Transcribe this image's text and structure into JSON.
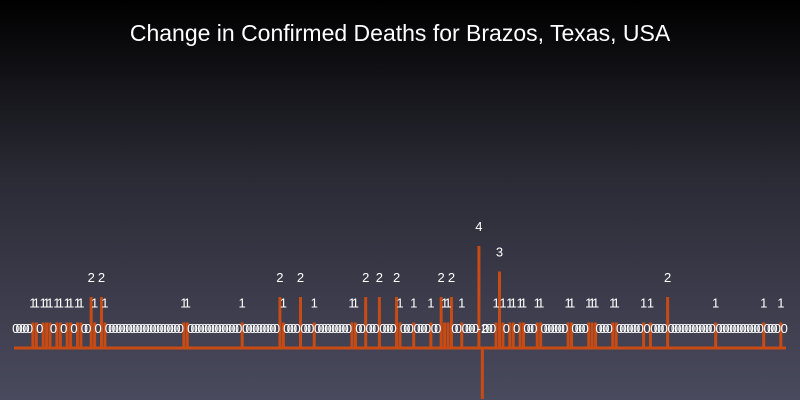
{
  "chart_data": {
    "type": "bar",
    "title": "Change in Confirmed Deaths for Brazos, Texas, USA",
    "xlabel": "",
    "ylabel": "",
    "bar_color": "#c84b14",
    "label_color": "#ffffff",
    "values": [
      0,
      0,
      0,
      0,
      0,
      1,
      1,
      0,
      1,
      1,
      1,
      0,
      1,
      1,
      0,
      1,
      1,
      0,
      1,
      1,
      0,
      0,
      2,
      1,
      0,
      2,
      1,
      0,
      0,
      0,
      0,
      0,
      0,
      0,
      0,
      0,
      0,
      0,
      0,
      0,
      0,
      0,
      0,
      0,
      0,
      0,
      0,
      0,
      0,
      1,
      1,
      0,
      0,
      0,
      0,
      0,
      0,
      0,
      0,
      0,
      0,
      0,
      0,
      0,
      0,
      0,
      1,
      0,
      0,
      0,
      0,
      0,
      0,
      0,
      0,
      0,
      0,
      2,
      1,
      0,
      0,
      0,
      0,
      2,
      0,
      0,
      0,
      1,
      0,
      0,
      0,
      0,
      0,
      0,
      0,
      0,
      0,
      0,
      1,
      1,
      0,
      0,
      2,
      0,
      0,
      0,
      2,
      0,
      0,
      0,
      0,
      2,
      1,
      0,
      0,
      0,
      1,
      0,
      0,
      0,
      0,
      1,
      0,
      0,
      2,
      1,
      1,
      2,
      0,
      0,
      1,
      0,
      0,
      0,
      0,
      4,
      -2,
      0,
      0,
      0,
      1,
      3,
      1,
      0,
      1,
      1,
      0,
      1,
      1,
      0,
      0,
      0,
      1,
      1,
      0,
      0,
      0,
      0,
      0,
      0,
      0,
      1,
      1,
      0,
      0,
      0,
      0,
      1,
      1,
      1,
      0,
      0,
      0,
      0,
      1,
      1,
      0,
      0,
      0,
      0,
      0,
      0,
      0,
      1,
      0,
      1,
      0,
      0,
      0,
      0,
      2,
      0,
      0,
      0,
      0,
      0,
      0,
      0,
      0,
      0,
      0,
      0,
      0,
      0,
      1,
      0,
      0,
      0,
      0,
      0,
      0,
      0,
      0,
      0,
      0,
      0,
      0,
      0,
      1,
      0,
      0,
      0,
      0,
      1,
      0
    ]
  }
}
